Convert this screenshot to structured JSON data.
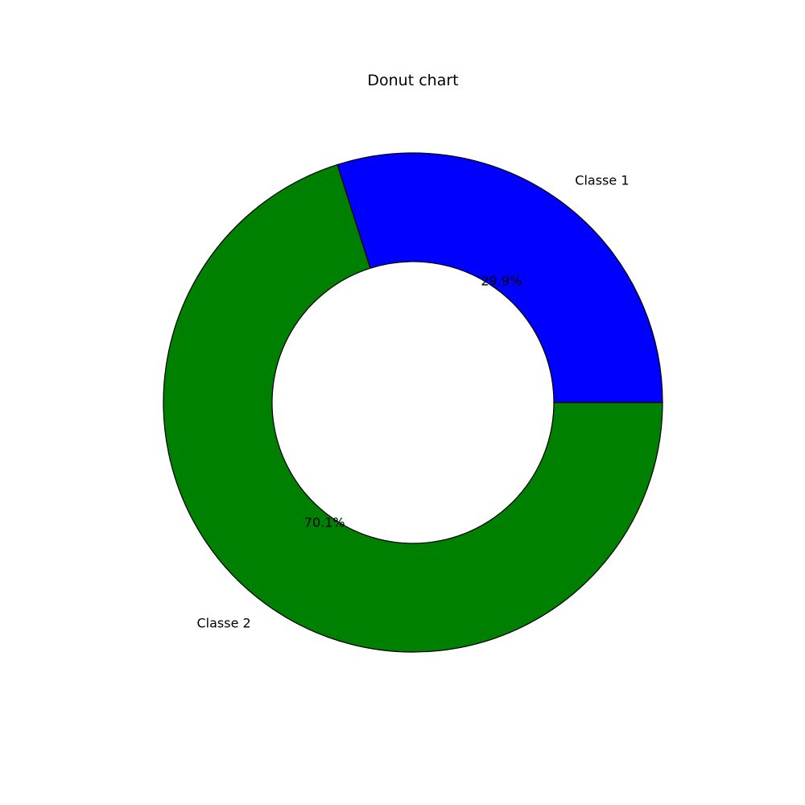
{
  "chart_data": {
    "type": "pie",
    "title": "Donut chart",
    "categories": [
      "Classe 1",
      "Classe 2"
    ],
    "values": [
      29.9,
      70.1
    ],
    "percent_labels": [
      "29.9%",
      "70.1%"
    ],
    "colors": [
      "#0000ff",
      "#008000"
    ],
    "edge_color": "#000000",
    "donut": true,
    "start_angle_deg": 0,
    "direction": "counterclockwise"
  }
}
